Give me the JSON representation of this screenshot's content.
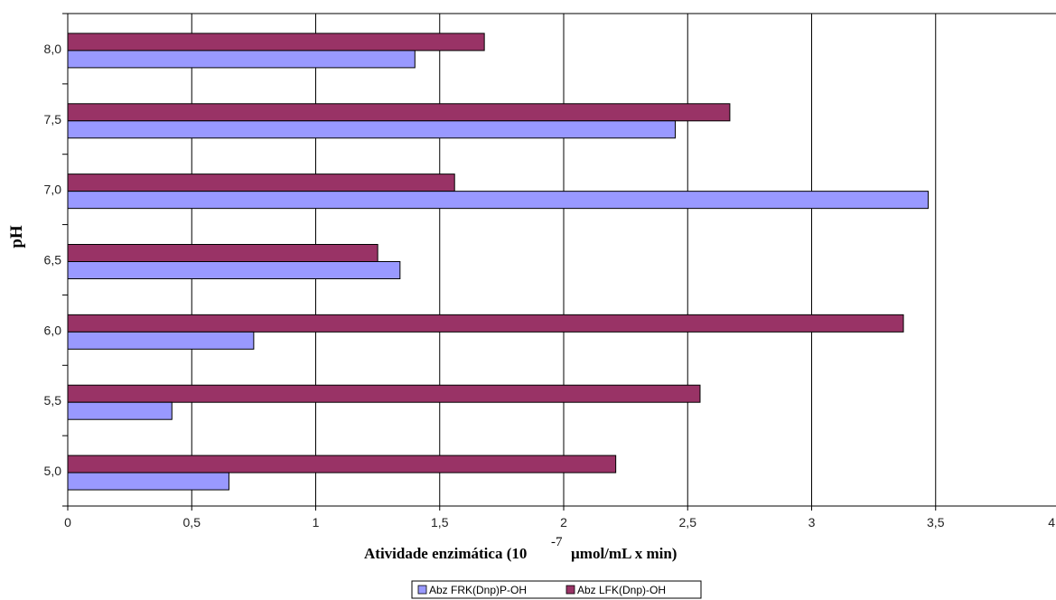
{
  "chart_data": {
    "type": "bar",
    "orientation": "horizontal",
    "categories": [
      "5,0",
      "5,5",
      "6,0",
      "6,5",
      "7,0",
      "7,5",
      "8,0"
    ],
    "series": [
      {
        "name": "Abz FRK(Dnp)P-OH",
        "color": "#9999ff",
        "values": [
          0.65,
          0.42,
          0.75,
          1.34,
          3.47,
          2.45,
          1.4
        ]
      },
      {
        "name": "Abz LFK(Dnp)-OH",
        "color": "#993366",
        "values": [
          2.21,
          2.55,
          3.37,
          1.25,
          1.56,
          2.67,
          1.68
        ]
      }
    ],
    "x_ticks": [
      "0",
      "0,5",
      "1",
      "1,5",
      "2",
      "2,5",
      "3",
      "3,5",
      "4"
    ],
    "xlim": [
      0,
      4
    ],
    "xlabel": "Atividade enzimática (10",
    "xlabel_exponent": "-7",
    "xlabel_suffix": "µmol/mL x min)",
    "ylabel": "pH",
    "grid": true,
    "legend_position": "bottom"
  }
}
